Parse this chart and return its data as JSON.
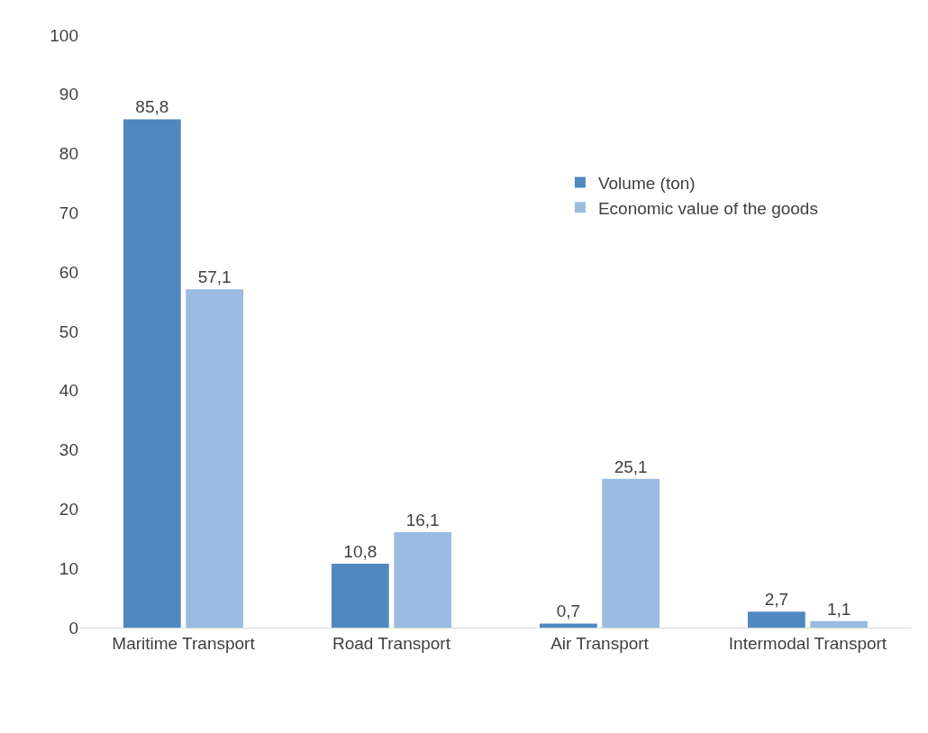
{
  "chart_data": {
    "type": "bar",
    "categories": [
      "Maritime Transport",
      "Road Transport",
      "Air Transport",
      "Intermodal Transport"
    ],
    "series": [
      {
        "name": "Volume (ton)",
        "color": "#4f89bf",
        "values": [
          85.8,
          10.8,
          0.7,
          2.7
        ],
        "value_labels": [
          "85,8",
          "10,8",
          "0,7",
          "2,7"
        ]
      },
      {
        "name": "Economic value of the goods",
        "color": "#9bbbe0",
        "values": [
          57.1,
          16.1,
          25.1,
          1.1
        ],
        "value_labels": [
          "57,1",
          "16,1",
          "25,1",
          "1,1"
        ]
      }
    ],
    "ylim": [
      0,
      100
    ],
    "yticks": [
      0,
      10,
      20,
      30,
      40,
      50,
      60,
      70,
      80,
      90,
      100
    ],
    "grid": false,
    "legend": "right"
  }
}
